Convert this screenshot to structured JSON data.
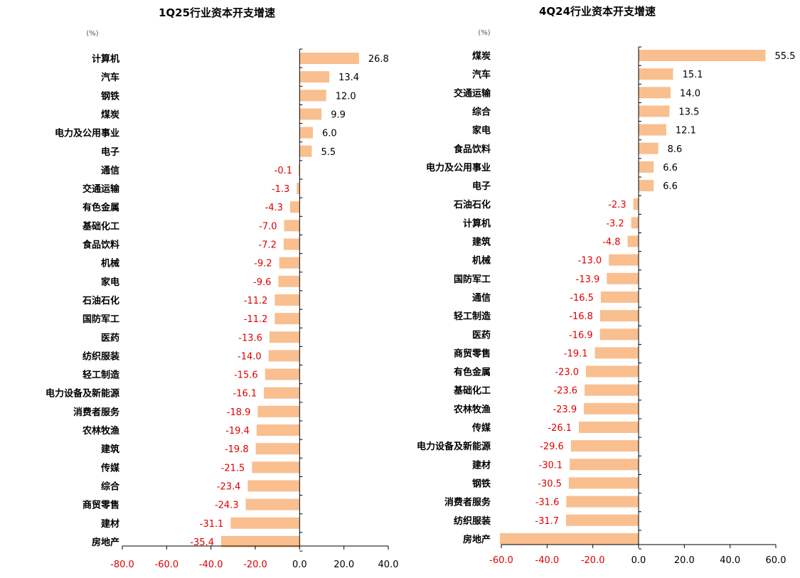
{
  "chart_data": [
    {
      "type": "bar",
      "orientation": "horizontal",
      "title": "1Q25行业资本开支增速",
      "unit": "(%)",
      "categories": [
        "计算机",
        "汽车",
        "钢铁",
        "煤炭",
        "电力及公用事业",
        "电子",
        "通信",
        "交通运输",
        "有色金属",
        "基础化工",
        "食品饮料",
        "机械",
        "家电",
        "石油石化",
        "国防军工",
        "医药",
        "纺织服装",
        "轻工制造",
        "电力设备及新能源",
        "消费者服务",
        "农林牧渔",
        "建筑",
        "传媒",
        "综合",
        "商贸零售",
        "建材",
        "房地产"
      ],
      "values": [
        26.8,
        13.4,
        12.0,
        9.9,
        6.0,
        5.5,
        -0.1,
        -1.3,
        -4.3,
        -7.0,
        -7.2,
        -9.2,
        -9.6,
        -11.2,
        -11.2,
        -13.6,
        -14.0,
        -15.6,
        -16.1,
        -18.9,
        -19.4,
        -19.8,
        -21.5,
        -23.4,
        -24.3,
        -31.1,
        -35.4
      ],
      "value_labels": [
        "26.8",
        "13.4",
        "12.0",
        "9.9",
        "6.0",
        "5.5",
        "-0.1",
        "-1.3",
        "-4.3",
        "-7.0",
        "-7.2",
        "-9.2",
        "-9.6",
        "-11.2",
        "-11.2",
        "-13.6",
        "-14.0",
        "-15.6",
        "-16.1",
        "-18.9",
        "-19.4",
        "-19.8",
        "-21.5",
        "-23.4",
        "-24.3",
        "-31.1",
        "-35.4"
      ],
      "xlim": [
        -80,
        40
      ],
      "xticks": [
        "-80.0",
        "-60.0",
        "-40.0",
        "-20.0",
        "0.0",
        "20.0",
        "40.0"
      ],
      "colors": {
        "bar": "#f9bf8f",
        "positive_label": "#000000",
        "negative_label": "#e00000"
      }
    },
    {
      "type": "bar",
      "orientation": "horizontal",
      "title": "4Q24行业资本开支增速",
      "unit": "(%)",
      "categories": [
        "煤炭",
        "汽车",
        "交通运输",
        "综合",
        "家电",
        "食品饮料",
        "电力及公用事业",
        "电子",
        "石油石化",
        "计算机",
        "建筑",
        "机械",
        "国防军工",
        "通信",
        "轻工制造",
        "医药",
        "商贸零售",
        "有色金属",
        "基础化工",
        "农林牧渔",
        "传媒",
        "电力设备及新能源",
        "建材",
        "钢铁",
        "消费者服务",
        "纺织服装",
        "房地产"
      ],
      "values": [
        55.5,
        15.1,
        14.0,
        13.5,
        12.1,
        8.6,
        6.6,
        6.6,
        -2.3,
        -3.2,
        -4.8,
        -13.0,
        -13.9,
        -16.5,
        -16.8,
        -16.9,
        -19.1,
        -23.0,
        -23.6,
        -23.9,
        -26.1,
        -29.6,
        -30.1,
        -30.5,
        -31.6,
        -31.7,
        -61.5
      ],
      "value_labels": [
        "55.5",
        "15.1",
        "14.0",
        "13.5",
        "12.1",
        "8.6",
        "6.6",
        "6.6",
        "-2.3",
        "-3.2",
        "-4.8",
        "-13.0",
        "-13.9",
        "-16.5",
        "-16.8",
        "-16.9",
        "-19.1",
        "-23.0",
        "-23.6",
        "-23.9",
        "-26.1",
        "-29.6",
        "-30.1",
        "-30.5",
        "-31.6",
        "-31.7",
        ""
      ],
      "xlim": [
        -60,
        60
      ],
      "xticks": [
        "-60.0",
        "-40.0",
        "-20.0",
        "0.0",
        "20.0",
        "40.0",
        "60.0"
      ],
      "colors": {
        "bar": "#f9bf8f",
        "positive_label": "#000000",
        "negative_label": "#e00000"
      }
    }
  ]
}
